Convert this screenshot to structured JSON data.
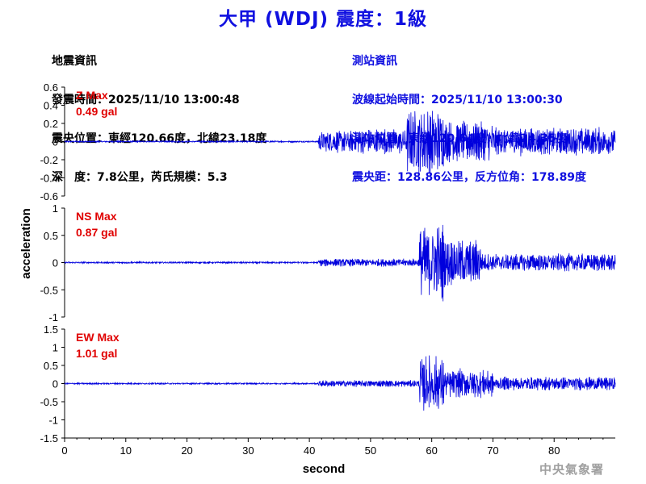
{
  "title": "大甲 (WDJ) 震度：1級",
  "quake_info": {
    "heading": "地震資訊",
    "origin_time": "發震時間：2025/11/10 13:00:48",
    "epicenter": "震央位置：東經120.66度，北緯23.18度",
    "depth_magnitude": "深　度：7.8公里，芮氏規模：5.3"
  },
  "station_info": {
    "heading": "測站資訊",
    "waveform_start": "波線起始時間：2025/11/10 13:00:30",
    "station_location": "測站位置：東經120.64度，北緯24.35度",
    "distance_azimuth": "震央距：128.86公里，反方位角：178.89度"
  },
  "footer": "中央氣象署",
  "colors": {
    "trace": "#0000dd",
    "title": "#1010e0",
    "max_label": "#e00000",
    "station_info": "#1010e0"
  },
  "chart_data": {
    "type": "line",
    "xlabel": "second",
    "ylabel": "acceleration",
    "xlim": [
      0,
      90
    ],
    "x_ticks": [
      0,
      10,
      20,
      30,
      40,
      50,
      60,
      70,
      80
    ],
    "sample_rate_hz": 20,
    "panels": [
      {
        "name": "Z",
        "max_label": "Z Max",
        "max_value": "0.49 gal",
        "ylim": [
          -0.6,
          0.6
        ],
        "y_ticks": [
          -0.6,
          -0.4,
          -0.2,
          0,
          0.2,
          0.4,
          0.6
        ],
        "segments": [
          {
            "from": 0,
            "to": 41.5,
            "amp": 0.008
          },
          {
            "from": 41.5,
            "to": 48,
            "amp": 0.12
          },
          {
            "from": 48,
            "to": 56,
            "amp": 0.14
          },
          {
            "from": 56,
            "to": 62,
            "amp": 0.36
          },
          {
            "from": 62,
            "to": 70,
            "amp": 0.22
          },
          {
            "from": 70,
            "to": 90,
            "amp": 0.15
          }
        ]
      },
      {
        "name": "NS",
        "max_label": "NS Max",
        "max_value": "0.87 gal",
        "ylim": [
          -1,
          1
        ],
        "y_ticks": [
          -1,
          -0.5,
          0,
          0.5,
          1
        ],
        "segments": [
          {
            "from": 0,
            "to": 41.5,
            "amp": 0.015
          },
          {
            "from": 41.5,
            "to": 58,
            "amp": 0.07
          },
          {
            "from": 58,
            "to": 62,
            "amp": 0.7
          },
          {
            "from": 62,
            "to": 68,
            "amp": 0.42
          },
          {
            "from": 68,
            "to": 90,
            "amp": 0.16
          }
        ]
      },
      {
        "name": "EW",
        "max_label": "EW Max",
        "max_value": "1.01 gal",
        "ylim": [
          -1.5,
          1.5
        ],
        "y_ticks": [
          -1.5,
          -1,
          -0.5,
          0,
          0.5,
          1,
          1.5
        ],
        "segments": [
          {
            "from": 0,
            "to": 41.5,
            "amp": 0.02
          },
          {
            "from": 41.5,
            "to": 58,
            "amp": 0.09
          },
          {
            "from": 58,
            "to": 62,
            "amp": 0.75
          },
          {
            "from": 62,
            "to": 70,
            "amp": 0.38
          },
          {
            "from": 70,
            "to": 90,
            "amp": 0.18
          }
        ]
      }
    ]
  }
}
